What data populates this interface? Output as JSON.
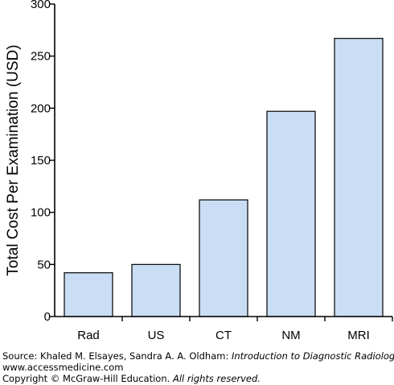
{
  "chart_data": {
    "type": "bar",
    "categories": [
      "Rad",
      "US",
      "CT",
      "NM",
      "MRI"
    ],
    "values": [
      42,
      50,
      112,
      197,
      267
    ],
    "ylabel": "Total Cost Per Examination (USD)",
    "xlabel": "",
    "ylim": [
      0,
      300
    ],
    "yticks": [
      0,
      50,
      100,
      150,
      200,
      250,
      300
    ],
    "grid": false,
    "bar_color": "#c9def4",
    "bar_stroke": "#000000"
  },
  "source": {
    "prefix": "Source: Khaled M. Elsayes, Sandra A. A. Oldham: ",
    "book_title": "Introduction to Diagnostic Radiology",
    "suffix": ":",
    "url": "www.accessmedicine.com",
    "copyright_prefix": "Copyright © McGraw-Hill Education. ",
    "copyright_italic": "All rights reserved."
  }
}
